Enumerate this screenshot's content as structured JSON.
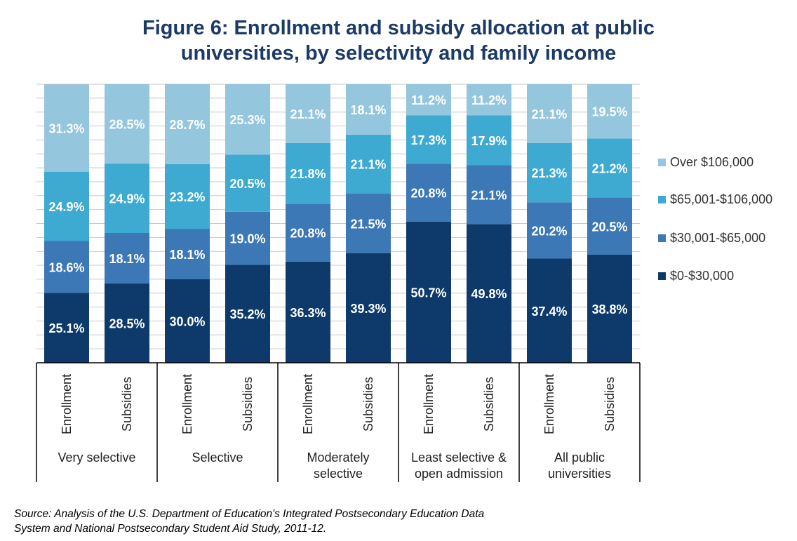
{
  "title_lines": [
    "Figure 6: Enrollment and subsidy allocation at public",
    "universities, by selectivity and family income"
  ],
  "source_lines": [
    "Source: Analysis of the U.S. Department of Education's Integrated Postsecondary Education Data",
    "System and National Postsecondary Student Aid Study, 2011-12."
  ],
  "colors": {
    "title": "#1b3a66",
    "series": [
      "#0d3a6a",
      "#3c78b5",
      "#3eaad2",
      "#94c6de"
    ],
    "grid": "#c8c8c8",
    "axis": "#000000",
    "label": "#ffffff"
  },
  "chart_data": {
    "type": "bar",
    "stacked": true,
    "ylim": [
      0,
      100
    ],
    "grid": true,
    "legend_position": "right",
    "groups": [
      {
        "label_lines": [
          "Very selective"
        ],
        "bars": [
          "Enrollment",
          "Subsidies"
        ]
      },
      {
        "label_lines": [
          "Selective"
        ],
        "bars": [
          "Enrollment",
          "Subsidies"
        ]
      },
      {
        "label_lines": [
          "Moderately",
          "selective"
        ],
        "bars": [
          "Enrollment",
          "Subsidies"
        ]
      },
      {
        "label_lines": [
          "Least selective &",
          "open admission"
        ],
        "bars": [
          "Enrollment",
          "Subsidies"
        ]
      },
      {
        "label_lines": [
          "All public",
          "universities"
        ],
        "bars": [
          "Enrollment",
          "Subsidies"
        ]
      }
    ],
    "series": [
      {
        "name": "$0-$30,000",
        "values": [
          25.1,
          28.5,
          30.0,
          35.2,
          36.3,
          39.3,
          50.7,
          49.8,
          37.4,
          38.8
        ],
        "labels": [
          "25.1%",
          "28.5%",
          "30.0%",
          "35.2%",
          "36.3%",
          "39.3%",
          "50.7%",
          "49.8%",
          "37.4%",
          "38.8%"
        ]
      },
      {
        "name": "$30,001-$65,000",
        "values": [
          18.6,
          18.1,
          18.1,
          19.0,
          20.8,
          21.5,
          20.8,
          21.1,
          20.2,
          20.5
        ],
        "labels": [
          "18.6%",
          "18.1%",
          "18.1%",
          "19.0%",
          "20.8%",
          "21.5%",
          "20.8%",
          "21.1%",
          "20.2%",
          "20.5%"
        ]
      },
      {
        "name": "$65,001-$106,000",
        "values": [
          24.9,
          24.9,
          23.2,
          20.5,
          21.8,
          21.1,
          17.3,
          17.9,
          21.3,
          21.2
        ],
        "labels": [
          "24.9%",
          "24.9%",
          "23.2%",
          "20.5%",
          "21.8%",
          "21.1%",
          "17.3%",
          "17.9%",
          "21.3%",
          "21.2%"
        ]
      },
      {
        "name": "Over $106,000",
        "values": [
          31.3,
          28.5,
          28.7,
          25.3,
          21.1,
          18.1,
          11.2,
          11.2,
          21.1,
          19.5
        ],
        "labels": [
          "31.3%",
          "28.5%",
          "28.7%",
          "25.3%",
          "21.1%",
          "18.1%",
          "11.2%",
          "11.2%",
          "21.1%",
          "19.5%"
        ]
      }
    ],
    "legend_order": [
      3,
      2,
      1,
      0
    ]
  }
}
